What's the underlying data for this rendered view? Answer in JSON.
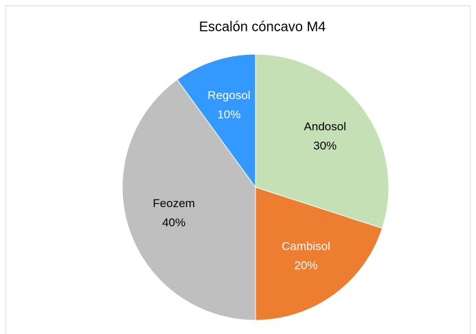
{
  "chart_data": {
    "type": "pie",
    "title": "Escalón cóncavo  M4",
    "categories": [
      "Andosol",
      "Cambisol",
      "Feozem",
      "Regosol"
    ],
    "values": [
      30,
      20,
      40,
      10
    ],
    "value_labels": [
      "30%",
      "20%",
      "40%",
      "10%"
    ],
    "colors": [
      "#c5e0b4",
      "#ed7d31",
      "#bfbfbf",
      "#3399ff"
    ],
    "label_colors": [
      "#000000",
      "#ffffff",
      "#000000",
      "#ffffff"
    ]
  }
}
